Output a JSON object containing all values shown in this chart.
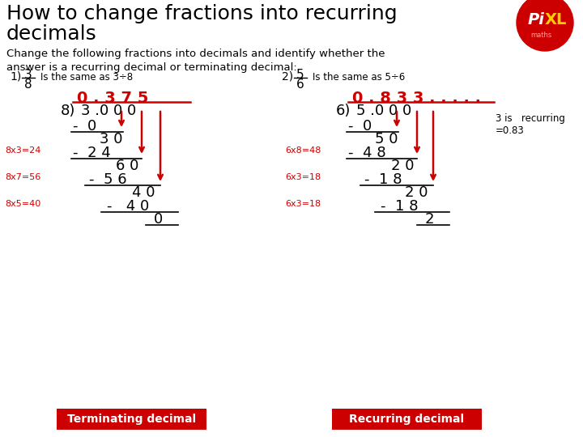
{
  "bg_color": "#ffffff",
  "title_line1": "How to change fractions into recurring",
  "title_line2": "decimals",
  "title_fontsize": 18,
  "subtitle": "Change the following fractions into decimals and identify whether the\nanswer is a recurring decimal or terminating decimal:",
  "subtitle_fontsize": 9.5,
  "red_color": "#cc0000",
  "box_text_color": "#ffffff",
  "div1_answer": "0.375",
  "div2_answer": "0.833.....",
  "note_line1": "3 is   recurring",
  "note_line2": "=0.83",
  "label1": "Terminating decimal",
  "label2": "Recurring decimal"
}
